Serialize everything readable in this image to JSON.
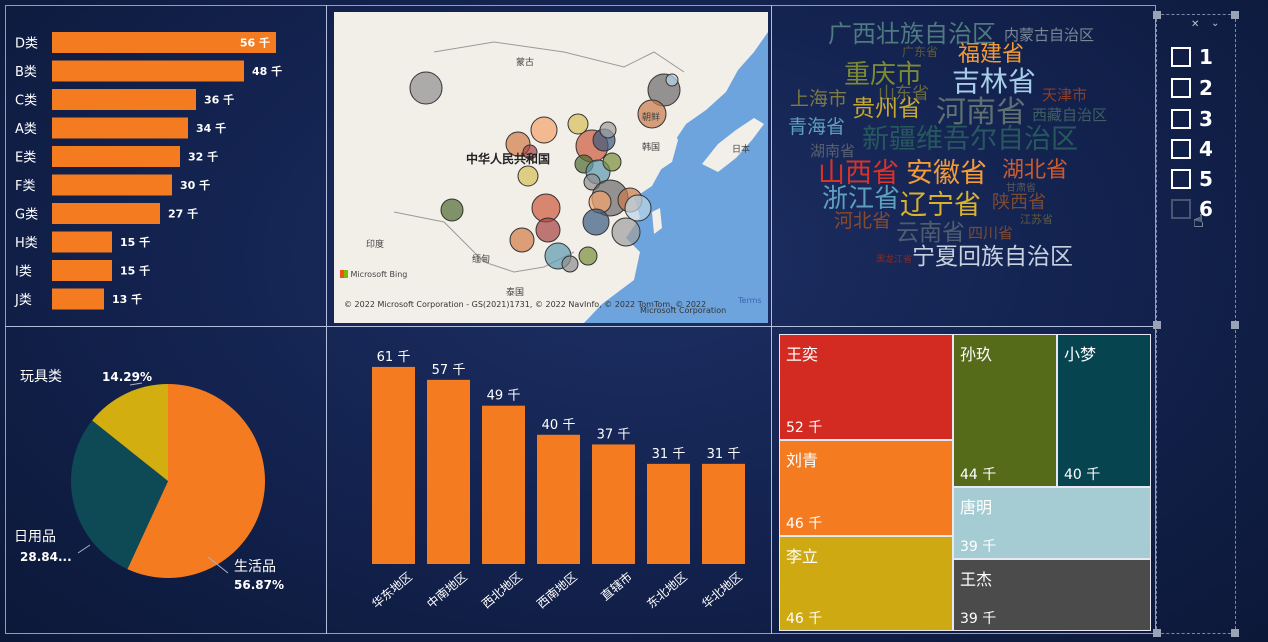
{
  "slicer": {
    "items": [
      {
        "label": "1"
      },
      {
        "label": "2"
      },
      {
        "label": "3"
      },
      {
        "label": "4"
      },
      {
        "label": "5"
      },
      {
        "label": "6"
      }
    ]
  },
  "map": {
    "labels": {
      "mongolia": "蒙古",
      "china": "中华人民共和国",
      "north_korea": "朝鲜",
      "south_korea": "韩国",
      "japan": "日本",
      "india": "印度",
      "myanmar": "缅甸",
      "thailand": "泰国"
    },
    "logo": "Microsoft Bing",
    "copyright": "© 2022 Microsoft Corporation - GS(2021)1731, © 2022 NavInfo, © 2022 TomTom, © 2022",
    "copyright2": "Microsoft Corporation",
    "terms": "Terms"
  },
  "word_cloud": {
    "words": [
      "广西壮族自治区",
      "内蒙古自治区",
      "广东省",
      "福建省",
      "重庆市",
      "吉林省",
      "山东省",
      "天津市",
      "上海市",
      "贵州省",
      "河南省",
      "西藏自治区",
      "青海省",
      "新疆维吾尔自治区",
      "湖南省",
      "山西省",
      "安徽省",
      "湖北省",
      "甘肃省",
      "浙江省",
      "辽宁省",
      "陕西省",
      "江苏省",
      "河北省",
      "云南省",
      "四川省",
      "黑龙江省",
      "宁夏回族自治区"
    ]
  },
  "chart_data": [
    {
      "type": "bar",
      "orientation": "horizontal",
      "categories": [
        "D类",
        "B类",
        "C类",
        "A类",
        "E类",
        "F类",
        "G类",
        "H类",
        "I类",
        "J类"
      ],
      "values": [
        56,
        48,
        36,
        34,
        32,
        30,
        27,
        15,
        15,
        13
      ],
      "data_labels": [
        "56 千",
        "48 千",
        "36 千",
        "34 千",
        "32 千",
        "30 千",
        "27 千",
        "15 千",
        "15 千",
        "13 千"
      ],
      "color": "#f47b20"
    },
    {
      "type": "pie",
      "slices": [
        {
          "name": "生活品",
          "value": 56.87,
          "label": "56.87%",
          "color": "#f47b20"
        },
        {
          "name": "日用品",
          "value": 28.84,
          "label": "28.84...",
          "color": "#0d4a55"
        },
        {
          "name": "玩具类",
          "value": 14.29,
          "label": "14.29%",
          "color": "#d2ae10"
        }
      ]
    },
    {
      "type": "bar",
      "orientation": "vertical",
      "categories": [
        "华东地区",
        "中南地区",
        "西北地区",
        "西南地区",
        "直辖市",
        "东北地区",
        "华北地区"
      ],
      "values": [
        61,
        57,
        49,
        40,
        37,
        31,
        31
      ],
      "data_labels": [
        "61 千",
        "57 千",
        "49 千",
        "40 千",
        "37 千",
        "31 千",
        "31 千"
      ],
      "color": "#f47b20"
    },
    {
      "type": "treemap",
      "items": [
        {
          "name": "王奕",
          "value": 52,
          "label": "52 千",
          "color": "#d32b22"
        },
        {
          "name": "刘青",
          "value": 46,
          "label": "46 千",
          "color": "#f47b20"
        },
        {
          "name": "李立",
          "value": 46,
          "label": "46 千",
          "color": "#cfa911"
        },
        {
          "name": "孙玖",
          "value": 44,
          "label": "44 千",
          "color": "#556b1a"
        },
        {
          "name": "小梦",
          "value": 40,
          "label": "40 千",
          "color": "#064450"
        },
        {
          "name": "唐明",
          "value": 39,
          "label": "39 千",
          "color": "#a6ccd3"
        },
        {
          "name": "王杰",
          "value": 39,
          "label": "39 千",
          "color": "#4b4b4b"
        }
      ]
    }
  ]
}
